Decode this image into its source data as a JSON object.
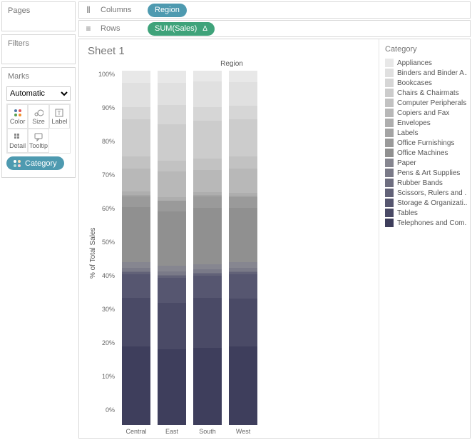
{
  "panels": {
    "pages_title": "Pages",
    "filters_title": "Filters",
    "marks_title": "Marks",
    "marks_select": "Automatic",
    "marks_cells": {
      "color": "Color",
      "size": "Size",
      "label": "Label",
      "detail": "Detail",
      "tooltip": "Tooltip"
    },
    "category_pill": "Category"
  },
  "shelves": {
    "columns_label": "Columns",
    "rows_label": "Rows",
    "columns_pill": "Region",
    "rows_pill": "SUM(Sales)",
    "rows_delta": "Δ"
  },
  "viz": {
    "sheet_title": "Sheet 1",
    "chart_title": "Region",
    "yaxis_label": "% of Total Sales",
    "yticks": [
      "100%",
      "90%",
      "80%",
      "70%",
      "60%",
      "50%",
      "40%",
      "30%",
      "20%",
      "10%",
      "0%"
    ],
    "categories": [
      "Central",
      "East",
      "South",
      "West"
    ],
    "legend_title": "Category",
    "legend_items": [
      {
        "label": "Appliances",
        "color": "#e8e8e8"
      },
      {
        "label": "Binders and Binder A..",
        "color": "#e0e0e0"
      },
      {
        "label": "Bookcases",
        "color": "#d6d6d6"
      },
      {
        "label": "Chairs & Chairmats",
        "color": "#cccccc"
      },
      {
        "label": "Computer Peripherals",
        "color": "#c2c2c2"
      },
      {
        "label": "Copiers and Fax",
        "color": "#b8b8b8"
      },
      {
        "label": "Envelopes",
        "color": "#aeaeae"
      },
      {
        "label": "Labels",
        "color": "#a4a4a4"
      },
      {
        "label": "Office Furnishings",
        "color": "#9a9a9a"
      },
      {
        "label": "Office Machines",
        "color": "#909090"
      },
      {
        "label": "Paper",
        "color": "#868690"
      },
      {
        "label": "Pens & Art Supplies",
        "color": "#7a7a88"
      },
      {
        "label": "Rubber Bands",
        "color": "#6e6e80"
      },
      {
        "label": "Scissors, Rulers and ..",
        "color": "#626278"
      },
      {
        "label": "Storage & Organizati..",
        "color": "#565670"
      },
      {
        "label": "Tables",
        "color": "#4a4a66"
      },
      {
        "label": "Telephones and Com..",
        "color": "#3e3e5c"
      }
    ],
    "series": {
      "Central": [
        3.4,
        6.8,
        3.5,
        10.5,
        3.4,
        6.5,
        1.0,
        0.3,
        3.2,
        15.5,
        1.6,
        1.0,
        0.2,
        0.5,
        6.7,
        13.8,
        22.1
      ],
      "East": [
        3.5,
        6.2,
        5.4,
        10.3,
        3.1,
        7.2,
        0.9,
        0.2,
        3.0,
        15.2,
        1.7,
        0.9,
        0.2,
        0.6,
        7.1,
        13.2,
        21.3
      ],
      "South": [
        3.1,
        7.1,
        4.0,
        10.7,
        3.2,
        6.1,
        0.9,
        0.3,
        3.4,
        15.8,
        1.5,
        1.0,
        0.2,
        0.5,
        6.4,
        14.1,
        21.7
      ],
      "West": [
        3.3,
        6.6,
        3.8,
        10.4,
        3.5,
        6.8,
        0.9,
        0.3,
        3.1,
        15.3,
        1.7,
        0.9,
        0.2,
        0.6,
        6.9,
        13.6,
        22.1
      ]
    }
  },
  "colors": {
    "accent_blue": "#4e9ab0",
    "accent_green": "#3fa37a"
  }
}
